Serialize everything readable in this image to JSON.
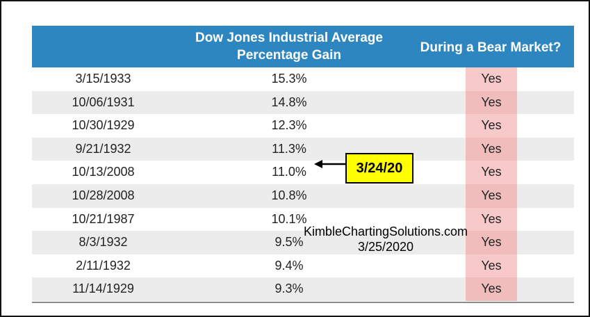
{
  "colors": {
    "header_bg": "#2e86c1",
    "header_text": "#ffffff",
    "stripe": "#ececec",
    "bear_column": "#f7c9c9",
    "callout_bg": "#ffff00"
  },
  "chart_data": {
    "type": "table",
    "columns": [
      "",
      "Dow Jones Industrial Average Percentage Gain",
      "During a Bear Market?"
    ],
    "header_lines": {
      "gain": [
        "Dow Jones Industrial Average",
        "Percentage Gain"
      ],
      "bear": "During a Bear Market?"
    },
    "rows": [
      {
        "date": "3/15/1933",
        "gain": "15.3%",
        "bear": "Yes"
      },
      {
        "date": "10/06/1931",
        "gain": "14.8%",
        "bear": "Yes"
      },
      {
        "date": "10/30/1929",
        "gain": "12.3%",
        "bear": "Yes"
      },
      {
        "date": "9/21/1932",
        "gain": "11.3%",
        "bear": "Yes"
      },
      {
        "date": "10/13/2008",
        "gain": "11.0%",
        "bear": "Yes"
      },
      {
        "date": "10/28/2008",
        "gain": "10.8%",
        "bear": "Yes"
      },
      {
        "date": "10/21/1987",
        "gain": "10.1%",
        "bear": "Yes"
      },
      {
        "date": "8/3/1932",
        "gain": "9.5%",
        "bear": "Yes"
      },
      {
        "date": "2/11/1932",
        "gain": "9.4%",
        "bear": "Yes"
      },
      {
        "date": "11/14/1929",
        "gain": "9.3%",
        "bear": "Yes"
      }
    ],
    "annotations": {
      "callout": "3/24/20",
      "credit_line1": "KimbleChartingSolutions.com",
      "credit_line2": "3/25/2020"
    }
  }
}
